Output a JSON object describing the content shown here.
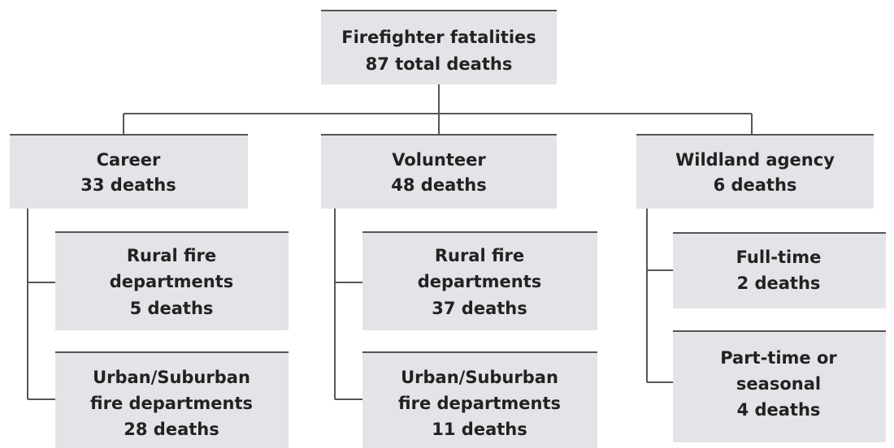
{
  "nodes": [
    {
      "lines": [
        "Firefighter fatalities",
        "87 total deaths"
      ]
    },
    {
      "lines": [
        "Career",
        "33 deaths"
      ]
    },
    {
      "lines": [
        "Volunteer",
        "48 deaths"
      ]
    },
    {
      "lines": [
        "Wildland agency",
        "6 deaths"
      ]
    },
    {
      "lines": [
        "Rural fire",
        "departments",
        "5 deaths"
      ]
    },
    {
      "lines": [
        "Urban/Suburban",
        "fire departments",
        "28 deaths"
      ]
    },
    {
      "lines": [
        "Rural fire",
        "departments",
        "37 deaths"
      ]
    },
    {
      "lines": [
        "Urban/Suburban",
        "fire departments",
        "11 deaths"
      ]
    },
    {
      "lines": [
        "Full-time",
        "2 deaths"
      ]
    },
    {
      "lines": [
        "Part-time or",
        "seasonal",
        "4 deaths"
      ]
    }
  ]
}
